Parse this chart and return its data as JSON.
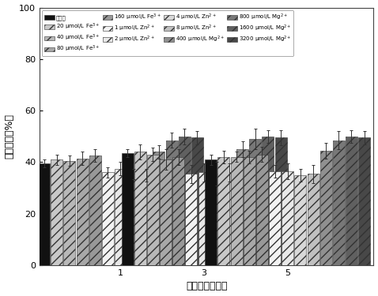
{
  "xlabel": "诱导时间（天）",
  "ylabel": "油脂含量（%）",
  "ylim": [
    0,
    100
  ],
  "yticks": [
    0,
    20,
    40,
    60,
    80,
    100
  ],
  "group_labels": [
    "1",
    "3",
    "5"
  ],
  "values": {
    "day1": [
      39.5,
      41.0,
      40.5,
      41.5,
      42.5,
      36.0,
      37.5,
      35.5,
      35.0,
      44.0,
      48.5,
      50.0,
      49.5
    ],
    "day3": [
      43.5,
      44.0,
      43.0,
      41.0,
      42.0,
      35.5,
      36.0,
      35.5,
      36.0,
      45.0,
      49.0,
      50.0,
      49.5
    ],
    "day5": [
      41.0,
      42.0,
      42.0,
      42.0,
      43.0,
      36.5,
      36.5,
      35.0,
      35.5,
      44.5,
      48.5,
      50.0,
      49.5
    ]
  },
  "errors": {
    "day1": [
      1.5,
      2.0,
      2.0,
      2.5,
      2.5,
      2.0,
      2.5,
      2.0,
      2.5,
      2.5,
      3.0,
      3.0,
      2.5
    ],
    "day3": [
      1.5,
      3.0,
      2.5,
      4.0,
      3.0,
      3.5,
      3.5,
      4.5,
      3.5,
      3.0,
      4.0,
      2.5,
      3.0
    ],
    "day5": [
      2.0,
      2.5,
      2.0,
      2.5,
      3.0,
      2.5,
      3.0,
      2.5,
      3.5,
      3.0,
      3.5,
      2.5,
      2.5
    ]
  },
  "face_colors": [
    "#111111",
    "#c8c8c8",
    "#b8b8b8",
    "#a8a8a8",
    "#989898",
    "#f2f2f2",
    "#e8e8e8",
    "#d8d8d8",
    "#c0c0c0",
    "#909090",
    "#787878",
    "#606060",
    "#484848"
  ],
  "hatches": [
    "",
    "///",
    "///",
    "///",
    "///",
    "///",
    "///",
    "///",
    "///",
    "///",
    "///",
    "///",
    "///"
  ],
  "legend_labels": [
    "对照组",
    "20 μmol/L Fe$^{3+}$",
    "40 μmol/L Fe$^{3+}$",
    "80 μmol/L Fe$^{3+}$",
    "160 μmol/L Fe$^{3+}$",
    "1 μmol/L Zn$^{2+}$",
    "2 μmol/L Zn$^{2+}$",
    "4 μmol/L Zn$^{2+}$",
    "8 μmol/L Zn$^{2+}$",
    "400 μmol/L Mg$^{2+}$",
    "800 μmol/L Mg$^{2+}$",
    "1600 μmol/L Mg$^{2+}$",
    "3200 μmol/L Mg$^{2+}$"
  ],
  "background_color": "#ffffff",
  "legend_fontsize": 5.0,
  "axis_fontsize": 9,
  "tick_fontsize": 8,
  "bar_width": 0.052,
  "group_centers": [
    0.38,
    0.38,
    0.38
  ]
}
